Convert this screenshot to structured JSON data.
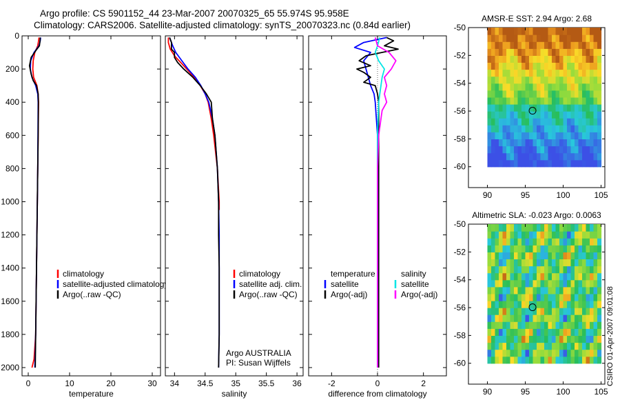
{
  "titles": {
    "line1": "Argo profile: CS 5901152_44 23-Mar-2007 20070325_65 55.974S 95.958E",
    "line2": "Climatology: CARS2006. Satellite-adjusted climatology: synTS_20070323.nc (0.84d earlier)"
  },
  "watermark": "CSIRO 01-Apr-2007 09:01:08",
  "colors": {
    "climatology": "#ff0000",
    "satellite": "#0000ff",
    "argo": "#000000",
    "salinity_satellite": "#00e5e5",
    "salinity_argo": "#ff00ff"
  },
  "chart_data": [
    {
      "type": "line",
      "name": "temperature",
      "xlabel": "temperature",
      "xlim": [
        -1.5,
        32
      ],
      "ylim": [
        2050,
        0
      ],
      "xticks": [
        0,
        10,
        20,
        30
      ],
      "yticks": [
        0,
        200,
        400,
        600,
        800,
        1000,
        1200,
        1400,
        1600,
        1800,
        2000
      ],
      "legend": {
        "position": "lower-right",
        "entries": [
          "climatology",
          "satellite-adjusted climatology",
          "Argo(..raw -QC)"
        ]
      },
      "series": [
        {
          "name": "climatology",
          "color": "#ff0000",
          "depth": [
            10,
            30,
            60,
            100,
            150,
            200,
            250,
            300,
            350,
            400,
            600,
            800,
            1000,
            1200,
            1400,
            1600,
            1800,
            1950,
            2000
          ],
          "values": [
            2.6,
            2.5,
            2.3,
            1.6,
            1.2,
            1.1,
            1.3,
            2.1,
            2.4,
            2.5,
            2.4,
            2.3,
            2.2,
            2.1,
            2.0,
            1.9,
            1.8,
            1.4,
            0.9
          ]
        },
        {
          "name": "satellite-adjusted climatology",
          "color": "#0000ff",
          "depth": [
            10,
            30,
            60,
            100,
            150,
            200,
            250,
            300,
            350,
            400,
            600,
            800,
            1000,
            1200,
            1400,
            1600,
            1800,
            2000
          ],
          "values": [
            3.0,
            2.9,
            2.6,
            1.4,
            0.6,
            0.5,
            0.9,
            1.8,
            2.3,
            2.4,
            2.35,
            2.3,
            2.2,
            2.1,
            2.0,
            1.9,
            1.8,
            1.6
          ]
        },
        {
          "name": "Argo(..raw -QC)",
          "color": "#000000",
          "depth": [
            10,
            30,
            60,
            90,
            130,
            180,
            230,
            270,
            300,
            350,
            400,
            600,
            800,
            1000,
            1200,
            1400,
            1600,
            1800,
            2000
          ],
          "values": [
            2.9,
            2.85,
            2.7,
            1.8,
            0.7,
            0.3,
            0.7,
            1.2,
            2.0,
            2.4,
            2.45,
            2.4,
            2.3,
            2.2,
            2.1,
            2.0,
            1.9,
            1.8,
            1.7
          ]
        }
      ]
    },
    {
      "type": "line",
      "name": "salinity",
      "xlabel": "salinity",
      "xlim": [
        33.85,
        36.1
      ],
      "ylim": [
        2050,
        0
      ],
      "xticks": [
        34,
        34.5,
        35,
        35.5,
        36
      ],
      "yticks": [
        0,
        200,
        400,
        600,
        800,
        1000,
        1200,
        1400,
        1600,
        1800,
        2000
      ],
      "legend": {
        "position": "lower-right",
        "entries": [
          "climatology",
          "satellite adj. clim.",
          "Argo(..raw -QC)"
        ]
      },
      "annotations": [
        "Argo AUSTRALIA",
        "PI: Susan Wijffels"
      ],
      "series": [
        {
          "name": "climatology",
          "color": "#ff0000",
          "depth": [
            10,
            40,
            80,
            120,
            160,
            200,
            250,
            300,
            350,
            400,
            500,
            600,
            800,
            1000,
            1050
          ],
          "values": [
            33.9,
            33.9,
            33.93,
            34.0,
            34.1,
            34.2,
            34.32,
            34.42,
            34.5,
            34.55,
            34.6,
            34.64,
            34.7,
            34.73,
            34.73
          ]
        },
        {
          "name": "satellite adj. clim.",
          "color": "#0000ff",
          "depth": [
            10,
            30,
            60,
            100,
            150,
            200,
            250,
            300,
            350,
            400,
            500,
            600,
            800,
            1000,
            1200,
            1400,
            1600,
            1800,
            2000
          ],
          "values": [
            33.92,
            33.94,
            33.97,
            34.02,
            34.12,
            34.22,
            34.34,
            34.43,
            34.5,
            34.56,
            34.62,
            34.66,
            34.7,
            34.72,
            34.73,
            34.73,
            34.73,
            34.73,
            34.72
          ]
        },
        {
          "name": "Argo(..raw -QC)",
          "color": "#000000",
          "depth": [
            10,
            40,
            80,
            100,
            130,
            160,
            200,
            250,
            300,
            350,
            400,
            500,
            600,
            800,
            1000,
            1200,
            1400,
            1600,
            1800,
            2000
          ],
          "values": [
            33.92,
            33.95,
            33.95,
            34.0,
            34.0,
            34.05,
            34.15,
            34.3,
            34.42,
            34.52,
            34.6,
            34.62,
            34.66,
            34.7,
            34.72,
            34.72,
            34.73,
            34.73,
            34.73,
            34.72
          ]
        }
      ]
    },
    {
      "type": "line",
      "name": "difference",
      "xlabel": "difference from climatology",
      "xlim": [
        -3,
        3
      ],
      "ylim": [
        2050,
        0
      ],
      "xticks": [
        -2,
        0,
        2
      ],
      "yticks": [
        0,
        200,
        400,
        600,
        800,
        1000,
        1200,
        1400,
        1600,
        1800,
        2000
      ],
      "legend": {
        "position": "lower",
        "temperature_header": "temperature",
        "salinity_header": "salinity",
        "temperature_entries": [
          "satellite",
          "Argo(-adj)"
        ],
        "salinity_entries": [
          "satellite",
          "Argo(-adj)"
        ]
      },
      "series": [
        {
          "name": "temperature satellite",
          "color": "#0000ff",
          "depth": [
            10,
            40,
            70,
            100,
            150,
            200,
            250,
            300,
            350,
            400,
            600,
            800,
            1000,
            1200,
            1400,
            1600,
            1800,
            2000
          ],
          "values": [
            0.4,
            -0.6,
            -1.0,
            -0.3,
            -0.6,
            -0.5,
            -0.4,
            -0.3,
            -0.15,
            -0.1,
            0.0,
            0.0,
            0.0,
            0.0,
            0.0,
            0.0,
            0.0,
            0.0
          ]
        },
        {
          "name": "temperature Argo(-adj)",
          "color": "#000000",
          "depth": [
            10,
            30,
            60,
            80,
            100,
            120,
            150,
            180,
            200,
            220,
            250,
            280,
            300,
            350,
            400,
            600,
            1000,
            1400,
            2000
          ],
          "values": [
            0.4,
            0.7,
            0.3,
            0.9,
            0.2,
            -0.5,
            -0.8,
            -0.3,
            -0.9,
            -0.6,
            -0.3,
            -0.6,
            -0.1,
            0.0,
            0.05,
            0.05,
            0.05,
            0.05,
            0.05
          ]
        },
        {
          "name": "salinity satellite",
          "color": "#00e5e5",
          "depth": [
            10,
            60,
            100,
            150,
            200,
            250,
            300,
            350,
            400,
            600,
            800,
            1000,
            1200,
            1400,
            1600,
            1800,
            2000
          ],
          "values": [
            0.1,
            0.0,
            -0.1,
            0.05,
            0.3,
            0.2,
            0.15,
            0.1,
            0.05,
            0.0,
            0.0,
            0.0,
            0.0,
            0.0,
            0.0,
            0.0,
            0.0
          ]
        },
        {
          "name": "salinity Argo(-adj)",
          "color": "#ff00ff",
          "depth": [
            10,
            60,
            100,
            150,
            200,
            250,
            300,
            350,
            400,
            450,
            500,
            600,
            800,
            1000,
            1200,
            2000
          ],
          "values": [
            -0.1,
            0.0,
            0.5,
            0.8,
            0.6,
            0.3,
            0.4,
            0.3,
            0.4,
            0.2,
            0.15,
            0.05,
            0.0,
            0.0,
            0.0,
            0.0
          ]
        }
      ]
    },
    {
      "type": "heatmap",
      "name": "sst",
      "title": "AMSR-E SST: 2.94 Argo: 2.68",
      "xlim": [
        87.5,
        105.5
      ],
      "ylim": [
        -61.5,
        -50
      ],
      "xticks": [
        90,
        95,
        100,
        105
      ],
      "yticks": [
        -50,
        -52,
        -54,
        -56,
        -58,
        -60
      ],
      "data_extent": {
        "x": [
          90,
          105
        ],
        "y": [
          -60,
          -50
        ]
      },
      "argo_position": {
        "lon": 95.958,
        "lat": -55.974
      }
    },
    {
      "type": "heatmap",
      "name": "sla",
      "title": "Altimetric SLA: -0.023 Argo: 0.0063",
      "xlim": [
        87.5,
        105.5
      ],
      "ylim": [
        -61.5,
        -50
      ],
      "xticks": [
        90,
        95,
        100,
        105
      ],
      "yticks": [
        -50,
        -52,
        -54,
        -56,
        -58,
        -60
      ],
      "data_extent": {
        "x": [
          90,
          105
        ],
        "y": [
          -60,
          -50
        ]
      },
      "argo_position": {
        "lon": 95.958,
        "lat": -55.974
      }
    }
  ]
}
